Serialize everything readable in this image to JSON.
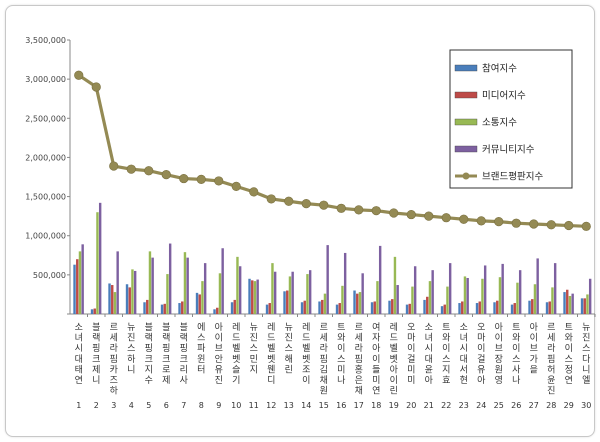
{
  "chart_data": {
    "type": "bar",
    "title": "",
    "xlabel": "",
    "ylabel": "",
    "ylim": [
      0,
      3500000
    ],
    "yticks": [
      "3,500,000",
      "3,000,000",
      "2,500,000",
      "2,000,000",
      "1,500,000",
      "1,000,000",
      "500,000",
      ""
    ],
    "grid": false,
    "legend_position": "right",
    "indices": [
      "1",
      "2",
      "3",
      "4",
      "5",
      "6",
      "7",
      "8",
      "9",
      "10",
      "11",
      "12",
      "13",
      "14",
      "15",
      "16",
      "17",
      "18",
      "19",
      "20",
      "21",
      "22",
      "23",
      "24",
      "25",
      "26",
      "27",
      "28",
      "29",
      "30"
    ],
    "categories": [
      "소녀시대 태연",
      "블랙핑크 제니",
      "르세라핌 카즈하",
      "뉴진스 하니",
      "블랙핑크 지수",
      "블랙핑크 로제",
      "블랙핑크 리사",
      "에스파 윈터",
      "아이브 안유진",
      "레드벨벳 슬기",
      "뉴진스 민지",
      "레드벨벳 웬디",
      "뉴진스 해린",
      "레드벨벳 조이",
      "르세라핌 김채원",
      "트와이스 미나",
      "르세라핌 홍은채",
      "여자아이들 미연",
      "레드벨벳 아이린",
      "오마이걸 미미",
      "소녀시대 윤아",
      "트와이스 지효",
      "소녀시대 서현",
      "오마이걸 유아",
      "아이브 장원영",
      "트와이스 사나",
      "아이브 가을",
      "르세라핌 허윤진",
      "트와이스 정연",
      "뉴진스 다니엘"
    ],
    "series": [
      {
        "name": "참여지수",
        "color": "#4a7ebb",
        "kind": "bar",
        "values": [
          630000,
          60000,
          390000,
          380000,
          150000,
          120000,
          140000,
          270000,
          60000,
          150000,
          450000,
          120000,
          290000,
          150000,
          160000,
          120000,
          300000,
          150000,
          170000,
          120000,
          180000,
          100000,
          140000,
          140000,
          150000,
          120000,
          170000,
          150000,
          280000,
          200000
        ]
      },
      {
        "name": "미디어지수",
        "color": "#be4b48",
        "kind": "bar",
        "values": [
          700000,
          70000,
          370000,
          340000,
          180000,
          130000,
          160000,
          250000,
          80000,
          180000,
          430000,
          140000,
          300000,
          170000,
          180000,
          140000,
          260000,
          160000,
          190000,
          130000,
          220000,
          120000,
          160000,
          160000,
          170000,
          140000,
          190000,
          160000,
          310000,
          200000
        ]
      },
      {
        "name": "소통지수",
        "color": "#98b954",
        "kind": "bar",
        "values": [
          800000,
          1300000,
          280000,
          570000,
          800000,
          510000,
          790000,
          420000,
          520000,
          730000,
          420000,
          650000,
          480000,
          510000,
          260000,
          360000,
          280000,
          420000,
          730000,
          350000,
          420000,
          350000,
          480000,
          450000,
          470000,
          400000,
          380000,
          340000,
          230000,
          250000
        ]
      },
      {
        "name": "커뮤니티지수",
        "color": "#7d60a0",
        "kind": "bar",
        "values": [
          890000,
          1420000,
          800000,
          550000,
          720000,
          900000,
          720000,
          650000,
          840000,
          610000,
          440000,
          540000,
          540000,
          560000,
          880000,
          780000,
          520000,
          870000,
          370000,
          610000,
          560000,
          650000,
          460000,
          620000,
          640000,
          560000,
          710000,
          650000,
          260000,
          450000
        ]
      },
      {
        "name": "브랜드평판지수",
        "color": "#948a54",
        "kind": "line",
        "values": [
          3050000,
          2900000,
          1890000,
          1850000,
          1830000,
          1780000,
          1730000,
          1720000,
          1700000,
          1630000,
          1560000,
          1470000,
          1440000,
          1410000,
          1390000,
          1350000,
          1330000,
          1320000,
          1290000,
          1270000,
          1250000,
          1230000,
          1210000,
          1190000,
          1180000,
          1160000,
          1150000,
          1140000,
          1130000,
          1120000
        ]
      }
    ]
  }
}
